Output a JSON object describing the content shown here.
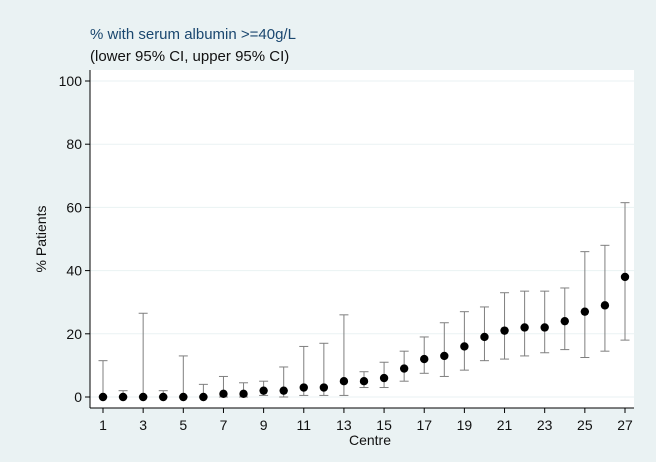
{
  "chart_data": {
    "type": "scatter",
    "title": "% with serum albumin >=40g/L",
    "subtitle": "(lower 95% CI, upper 95% CI)",
    "xlabel": "Centre",
    "ylabel": "% Patients",
    "xlim": [
      1,
      27
    ],
    "ylim": [
      0,
      100
    ],
    "x_ticks": [
      1,
      3,
      5,
      7,
      9,
      11,
      13,
      15,
      17,
      19,
      21,
      23,
      25,
      27
    ],
    "y_ticks": [
      0,
      20,
      40,
      60,
      80,
      100
    ],
    "grid": true,
    "point_color": "#000000",
    "ci_color": "#7f7f7f",
    "points": [
      {
        "x": 1,
        "y": 0,
        "lower": 0,
        "upper": 11.5
      },
      {
        "x": 2,
        "y": 0,
        "lower": 0,
        "upper": 2
      },
      {
        "x": 3,
        "y": 0,
        "lower": 0,
        "upper": 26.5
      },
      {
        "x": 4,
        "y": 0,
        "lower": 0,
        "upper": 2
      },
      {
        "x": 5,
        "y": 0,
        "lower": 0,
        "upper": 13
      },
      {
        "x": 6,
        "y": 0,
        "lower": 0,
        "upper": 4
      },
      {
        "x": 7,
        "y": 1,
        "lower": 0,
        "upper": 6.5
      },
      {
        "x": 8,
        "y": 1,
        "lower": 0,
        "upper": 4.5
      },
      {
        "x": 9,
        "y": 2,
        "lower": 0.5,
        "upper": 5
      },
      {
        "x": 10,
        "y": 2,
        "lower": 0,
        "upper": 9.5
      },
      {
        "x": 11,
        "y": 3,
        "lower": 0.5,
        "upper": 16
      },
      {
        "x": 12,
        "y": 3,
        "lower": 0.5,
        "upper": 17
      },
      {
        "x": 13,
        "y": 5,
        "lower": 0.5,
        "upper": 26
      },
      {
        "x": 14,
        "y": 5,
        "lower": 3,
        "upper": 8
      },
      {
        "x": 15,
        "y": 6,
        "lower": 3,
        "upper": 11
      },
      {
        "x": 16,
        "y": 9,
        "lower": 5,
        "upper": 14.5
      },
      {
        "x": 17,
        "y": 12,
        "lower": 7.5,
        "upper": 19
      },
      {
        "x": 18,
        "y": 13,
        "lower": 6.5,
        "upper": 23.5
      },
      {
        "x": 19,
        "y": 16,
        "lower": 8.5,
        "upper": 27
      },
      {
        "x": 20,
        "y": 19,
        "lower": 11.5,
        "upper": 28.5
      },
      {
        "x": 21,
        "y": 21,
        "lower": 12,
        "upper": 33
      },
      {
        "x": 22,
        "y": 22,
        "lower": 13,
        "upper": 33.5
      },
      {
        "x": 23,
        "y": 22,
        "lower": 14,
        "upper": 33.5
      },
      {
        "x": 24,
        "y": 24,
        "lower": 15,
        "upper": 34.5
      },
      {
        "x": 25,
        "y": 27,
        "lower": 12.5,
        "upper": 46
      },
      {
        "x": 26,
        "y": 29,
        "lower": 14.5,
        "upper": 48
      },
      {
        "x": 27,
        "y": 38,
        "lower": 18,
        "upper": 61.5
      }
    ]
  }
}
